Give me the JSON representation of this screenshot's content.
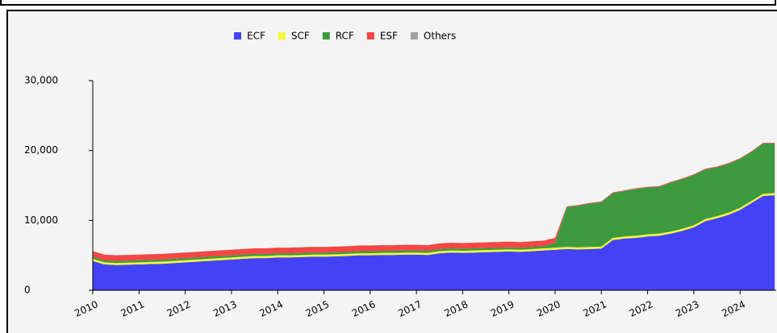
{
  "chart_data": {
    "type": "stacked-area",
    "categories": [
      "2010",
      null,
      null,
      null,
      "2011",
      null,
      null,
      null,
      "2012",
      null,
      null,
      null,
      "2013",
      null,
      null,
      null,
      "2014",
      null,
      null,
      null,
      "2015",
      null,
      null,
      null,
      "2016",
      null,
      null,
      null,
      "2017",
      null,
      null,
      null,
      "2018",
      null,
      null,
      null,
      "2019",
      null,
      null,
      null,
      "2020",
      null,
      null,
      null,
      "2021",
      null,
      null,
      null,
      "2022",
      null,
      null,
      null,
      "2023",
      null,
      null,
      null,
      "2024",
      null,
      null,
      null
    ],
    "series": [
      {
        "name": "ECF",
        "color": "#4343f5",
        "values": [
          4200,
          3700,
          3600,
          3650,
          3700,
          3750,
          3800,
          3900,
          4000,
          4100,
          4200,
          4300,
          4400,
          4500,
          4600,
          4600,
          4700,
          4700,
          4750,
          4800,
          4800,
          4850,
          4900,
          5000,
          5000,
          5050,
          5050,
          5100,
          5100,
          5050,
          5300,
          5400,
          5350,
          5400,
          5450,
          5500,
          5550,
          5500,
          5600,
          5700,
          5800,
          5900,
          5850,
          5900,
          5950,
          7200,
          7400,
          7500,
          7700,
          7800,
          8100,
          8500,
          9000,
          9900,
          10300,
          10800,
          11500,
          12500,
          13500,
          13600
        ]
      },
      {
        "name": "SCF",
        "color": "#f5f53c",
        "values": [
          300,
          300,
          300,
          300,
          300,
          300,
          300,
          300,
          300,
          300,
          300,
          300,
          300,
          300,
          300,
          300,
          300,
          300,
          300,
          300,
          300,
          300,
          300,
          300,
          300,
          300,
          300,
          300,
          300,
          300,
          300,
          300,
          300,
          300,
          300,
          300,
          300,
          300,
          300,
          300,
          300,
          300,
          300,
          300,
          300,
          300,
          300,
          300,
          300,
          300,
          300,
          300,
          300,
          300,
          300,
          300,
          300,
          300,
          300,
          300
        ]
      },
      {
        "name": "RCF",
        "color": "#3e9a3e",
        "values": [
          300,
          300,
          300,
          300,
          300,
          300,
          300,
          300,
          300,
          300,
          300,
          300,
          300,
          300,
          300,
          300,
          300,
          300,
          300,
          300,
          300,
          300,
          300,
          300,
          300,
          300,
          300,
          300,
          300,
          300,
          300,
          300,
          300,
          300,
          300,
          300,
          300,
          300,
          300,
          300,
          700,
          5700,
          5950,
          6200,
          6350,
          6400,
          6500,
          6700,
          6700,
          6700,
          7000,
          7100,
          7200,
          7100,
          7000,
          7000,
          7000,
          7000,
          7200,
          7100
        ]
      },
      {
        "name": "ESF",
        "color": "#f54545",
        "values": [
          800,
          800,
          800,
          800,
          800,
          800,
          800,
          800,
          800,
          800,
          800,
          800,
          800,
          800,
          800,
          800,
          800,
          800,
          800,
          800,
          800,
          800,
          800,
          800,
          800,
          800,
          800,
          800,
          800,
          800,
          800,
          800,
          800,
          800,
          800,
          800,
          800,
          800,
          800,
          800,
          700,
          100,
          100,
          100,
          100,
          100,
          100,
          100,
          100,
          100,
          100,
          100,
          100,
          100,
          100,
          100,
          100,
          100,
          100,
          100
        ]
      },
      {
        "name": "Others",
        "color": "#a0a0a0",
        "values": [
          20,
          20,
          20,
          20,
          20,
          20,
          20,
          20,
          20,
          20,
          20,
          20,
          20,
          20,
          20,
          20,
          20,
          20,
          20,
          20,
          20,
          20,
          20,
          20,
          20,
          20,
          20,
          20,
          20,
          20,
          20,
          20,
          20,
          20,
          20,
          20,
          20,
          20,
          20,
          20,
          20,
          20,
          20,
          20,
          20,
          20,
          20,
          20,
          20,
          20,
          20,
          20,
          20,
          20,
          20,
          20,
          20,
          20,
          20,
          20
        ]
      }
    ],
    "ylim": [
      0,
      30000
    ],
    "yticks": [
      0,
      {
        "value": 10000,
        "label": "10,000"
      },
      {
        "value": 20000,
        "label": "20,000"
      },
      {
        "value": 30000,
        "label": "30,000"
      }
    ],
    "legend": "top"
  }
}
